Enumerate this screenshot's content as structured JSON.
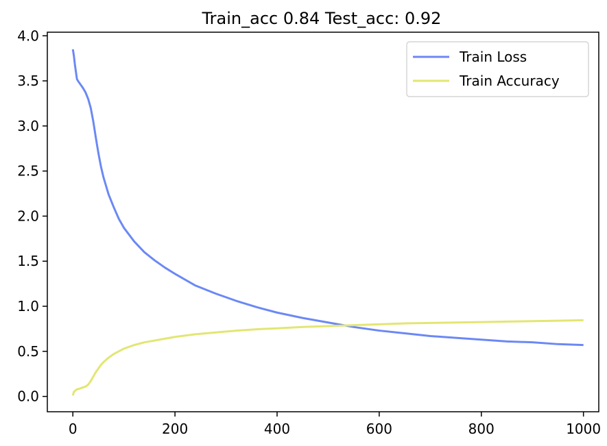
{
  "chart_data": {
    "type": "line",
    "title": "Train_acc 0.84 Test_acc: 0.92",
    "xlabel": "",
    "ylabel": "",
    "xlim": [
      -50,
      1030
    ],
    "ylim": [
      -0.17,
      4.04
    ],
    "xticks": [
      0,
      200,
      400,
      600,
      800,
      1000
    ],
    "xtick_labels": [
      "0",
      "200",
      "400",
      "600",
      "800",
      "1000"
    ],
    "yticks": [
      0.0,
      0.5,
      1.0,
      1.5,
      2.0,
      2.5,
      3.0,
      3.5,
      4.0
    ],
    "ytick_labels": [
      "0.0",
      "0.5",
      "1.0",
      "1.5",
      "2.0",
      "2.5",
      "3.0",
      "3.5",
      "4.0"
    ],
    "grid": false,
    "legend_position": "top-right",
    "series": [
      {
        "name": "Train Loss",
        "color": "#6b88f5",
        "x": [
          0,
          2,
          4,
          6,
          8,
          10,
          15,
          20,
          25,
          30,
          35,
          40,
          45,
          50,
          55,
          60,
          70,
          80,
          90,
          100,
          120,
          140,
          160,
          180,
          200,
          240,
          280,
          320,
          360,
          400,
          450,
          500,
          550,
          600,
          650,
          700,
          750,
          800,
          850,
          900,
          950,
          1000
        ],
        "y": [
          3.85,
          3.78,
          3.68,
          3.6,
          3.52,
          3.5,
          3.46,
          3.42,
          3.37,
          3.3,
          3.2,
          3.05,
          2.87,
          2.7,
          2.55,
          2.43,
          2.24,
          2.1,
          1.97,
          1.87,
          1.72,
          1.6,
          1.51,
          1.43,
          1.36,
          1.23,
          1.14,
          1.06,
          0.99,
          0.93,
          0.87,
          0.82,
          0.77,
          0.73,
          0.7,
          0.67,
          0.65,
          0.63,
          0.61,
          0.6,
          0.58,
          0.57
        ]
      },
      {
        "name": "Train Accuracy",
        "color": "#e2e672",
        "x": [
          0,
          2,
          4,
          6,
          8,
          10,
          15,
          20,
          25,
          30,
          35,
          40,
          45,
          50,
          55,
          60,
          70,
          80,
          90,
          100,
          120,
          140,
          160,
          180,
          200,
          240,
          280,
          320,
          360,
          400,
          450,
          500,
          550,
          600,
          650,
          700,
          750,
          800,
          850,
          900,
          950,
          1000
        ],
        "y": [
          0.01,
          0.05,
          0.06,
          0.07,
          0.08,
          0.08,
          0.09,
          0.1,
          0.11,
          0.13,
          0.17,
          0.22,
          0.27,
          0.31,
          0.35,
          0.38,
          0.43,
          0.47,
          0.5,
          0.53,
          0.57,
          0.6,
          0.62,
          0.64,
          0.66,
          0.69,
          0.71,
          0.73,
          0.745,
          0.755,
          0.77,
          0.78,
          0.79,
          0.8,
          0.81,
          0.815,
          0.82,
          0.825,
          0.83,
          0.835,
          0.84,
          0.845
        ]
      }
    ]
  }
}
